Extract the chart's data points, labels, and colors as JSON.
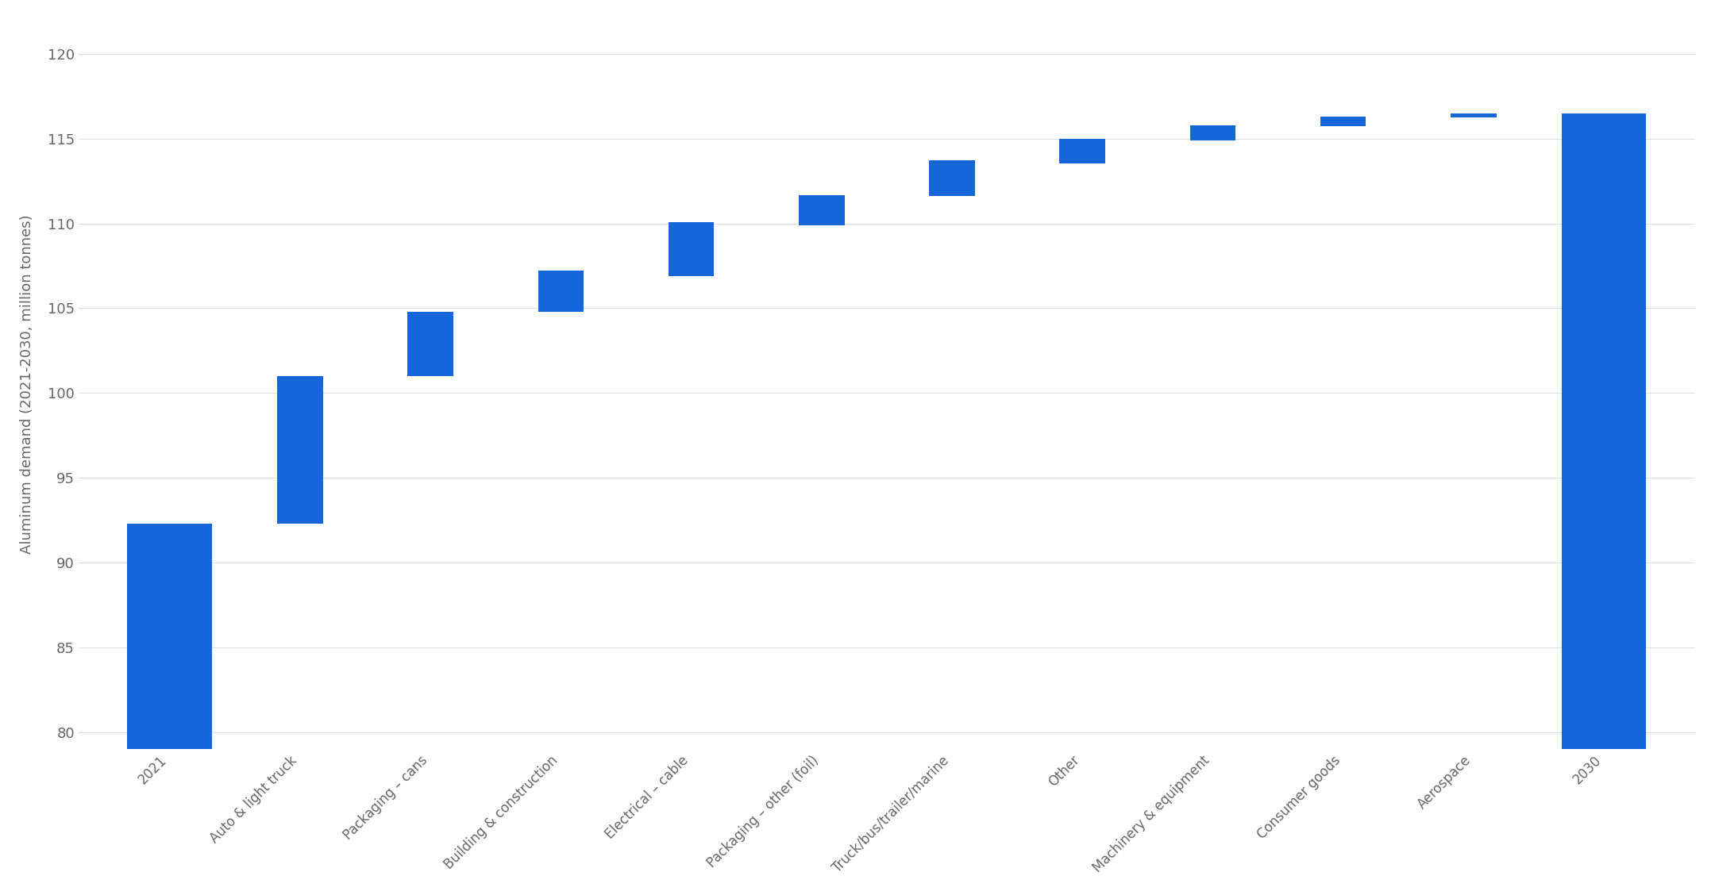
{
  "categories": [
    "2021",
    "Auto & light truck",
    "Packaging – cans",
    "Building & construction",
    "Electrical – cable",
    "Packaging – other (foil)",
    "Truck/bus/trailer/marine",
    "Other",
    "Machinery & equipment",
    "Consumer goods",
    "Aerospace",
    "2030"
  ],
  "bar_bottoms": [
    0,
    92.3,
    101.0,
    104.8,
    106.9,
    109.9,
    111.6,
    113.55,
    114.9,
    115.75,
    116.25,
    0
  ],
  "bar_tops": [
    92.3,
    101.0,
    104.8,
    107.2,
    110.05,
    111.65,
    113.7,
    115.0,
    115.8,
    116.3,
    116.5,
    116.5
  ],
  "is_total": [
    true,
    false,
    false,
    false,
    false,
    false,
    false,
    false,
    false,
    false,
    false,
    true
  ],
  "bar_color": "#1566d8",
  "background_color": "#ffffff",
  "ylabel": "Aluminum demand (2021-2030, million tonnes)",
  "ylim": [
    79,
    122
  ],
  "yticks": [
    80,
    85,
    90,
    95,
    100,
    105,
    110,
    115,
    120
  ],
  "grid_color": "#e0e0e0",
  "tick_label_color": "#666666",
  "ylabel_color": "#666666",
  "ylabel_fontsize": 13,
  "tick_fontsize": 13,
  "xtick_fontsize": 12,
  "total_bar_width": 0.65,
  "increment_bar_width": 0.35
}
